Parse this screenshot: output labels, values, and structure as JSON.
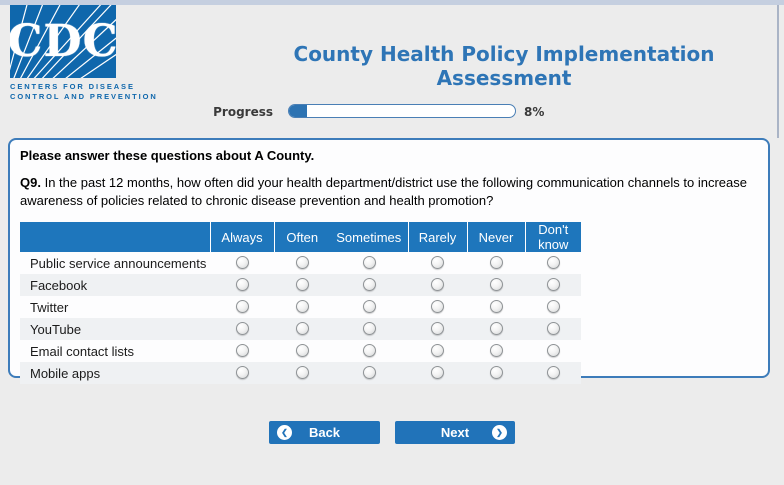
{
  "page": {
    "title": "County Health Policy Implementation Assessment"
  },
  "logo": {
    "acronym": "CDC",
    "caption_line1": "CENTERS FOR DISEASE",
    "caption_line2": "CONTROL AND PREVENTION"
  },
  "progress": {
    "label": "Progress",
    "percent": 8,
    "percent_text": "8%"
  },
  "survey": {
    "intro": "Please answer these questions about A County.",
    "question_number": "Q9.",
    "question_text": "In the past 12 months, how often did your health department/district use the following communication channels to increase awareness of policies related to chronic disease prevention and health promotion?",
    "table": {
      "columns": [
        "Always",
        "Often",
        "Sometimes",
        "Rarely",
        "Never",
        "Don't know"
      ],
      "rows": [
        "Public service announcements",
        "Facebook",
        "Twitter",
        "YouTube",
        "Email contact lists",
        "Mobile apps"
      ],
      "selected": []
    }
  },
  "buttons": {
    "back": "Back",
    "next": "Next"
  },
  "colors": {
    "brand_blue": "#0f67ac",
    "title_blue": "#2e75b6",
    "table_header_blue": "#1e76bc",
    "button_blue": "#2173b9",
    "progress_fill": "#2d73b2",
    "page_background": "#ececec",
    "alt_row": "#eff1f3"
  }
}
